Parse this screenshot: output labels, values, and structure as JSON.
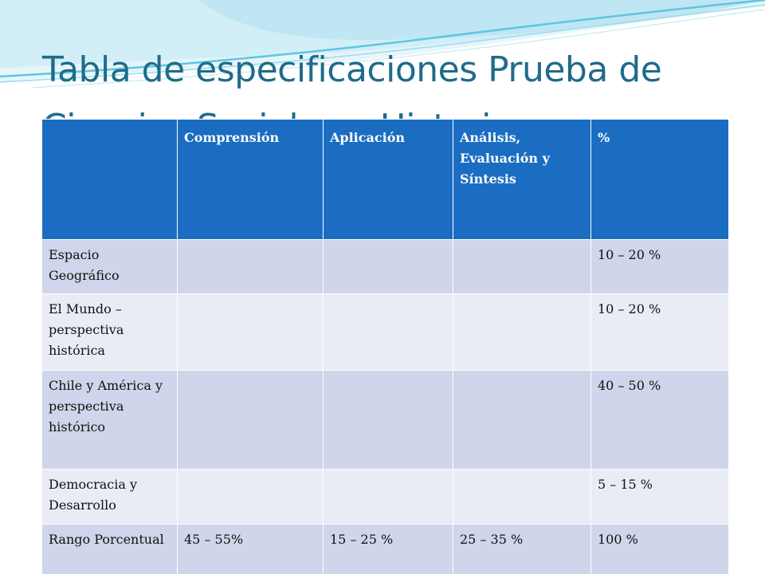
{
  "slide": {
    "title": "Tabla de especificaciones Prueba de Ciencias Sociales e Historia"
  },
  "table": {
    "headers": [
      "",
      "Comprensión",
      "Aplicación",
      "Análisis, Evaluación y Síntesis",
      "%"
    ],
    "rows": [
      [
        "Espacio Geográfico",
        "",
        "",
        "",
        "10 – 20 %"
      ],
      [
        "El Mundo – perspectiva histórica",
        "",
        "",
        "",
        "10 – 20 %"
      ],
      [
        "Chile y América y perspectiva histórico",
        "",
        "",
        "",
        "40 – 50 %"
      ],
      [
        "Democracia y Desarrollo",
        "",
        "",
        "",
        "5 – 15 %"
      ],
      [
        "Rango Porcentual",
        "45 – 55%",
        "15 – 25 %",
        "25 – 35 %",
        "100 %"
      ]
    ]
  },
  "colors": {
    "title": "#1f6b8a",
    "header_bg": "#1b6dc2",
    "row_dark": "#cfd5ea",
    "row_light": "#e9ebf5",
    "wave_light": "#bfe6f2",
    "wave_accent": "#5cc7e3"
  }
}
